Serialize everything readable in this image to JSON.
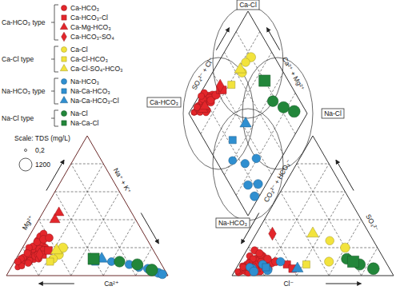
{
  "chart_data": {
    "type": "piper",
    "grid": true,
    "tick_labels": false,
    "legend": "top-left",
    "xlim": [
      0,
      100
    ],
    "xticks": [
      20,
      40,
      60,
      80
    ],
    "facies_labels": [
      "Ca-Cl",
      "Ca-HCO₃",
      "Na-Cl",
      "Na-HCO₃"
    ],
    "axis_labels": {
      "diamond_left": "SO₄²⁻ + Cl⁻",
      "diamond_right": "Ca²⁺ + Mg²⁺",
      "cation_left": "Mg²⁺",
      "cation_right": "Na⁺ + K⁺",
      "cation_bottom": "Ca²⁺",
      "anion_left": "CO₃²⁻ + HCO₃⁻",
      "anion_right": "SO₄²⁻",
      "anion_bottom": "Cl⁻"
    },
    "size_legend": {
      "title": "Scale: TDS (mg/L)",
      "values": [
        {
          "value": 0.2,
          "label": "0,2"
        },
        1200
      ]
    },
    "groups": [
      {
        "name": "Ca-HCO₃ type",
        "series": [
          {
            "name": "Ca-HCO₃",
            "color": "#e3262b",
            "marker": "circle",
            "ca": [
              82,
              78,
              85,
              75,
              70,
              88,
              80,
              72,
              68,
              84,
              76,
              79,
              65,
              90,
              74,
              81,
              67,
              86,
              73,
              77,
              62,
              83,
              71,
              87,
              69,
              80,
              75,
              64,
              78,
              82,
              70,
              66,
              85,
              60,
              76,
              73,
              79,
              68,
              88,
              74
            ],
            "mg": [
              12,
              15,
              10,
              18,
              22,
              8,
              14,
              20,
              25,
              11,
              16,
              13,
              28,
              6,
              19,
              10,
              22,
              9,
              21,
              12,
              30,
              13,
              17,
              7,
              24,
              11,
              14,
              26,
              17,
              9,
              19,
              20,
              12,
              27,
              20,
              15,
              16,
              18,
              10,
              12
            ],
            "cl": [
              5,
              8,
              4,
              10,
              12,
              3,
              6,
              15,
              9,
              7,
              18,
              4,
              8,
              2,
              11,
              14,
              20,
              5,
              7,
              12,
              6,
              9,
              16,
              6,
              13,
              3,
              20,
              10,
              8,
              11,
              5,
              14,
              13,
              18,
              4,
              9,
              16,
              22,
              7,
              6
            ],
            "so4": [
              4,
              6,
              3,
              5,
              8,
              2,
              10,
              6,
              12,
              5,
              7,
              14,
              9,
              3,
              11,
              4,
              9,
              8,
              3,
              14,
              5,
              2,
              12,
              6,
              4,
              7,
              5,
              15,
              9,
              8,
              18,
              3,
              10,
              6,
              6,
              16,
              3,
              10,
              12,
              9
            ],
            "tds": [
              210,
              260,
              180,
              300,
              340,
              150,
              240,
              280,
              310,
              200,
              330,
              220,
              290,
              120,
              270,
              250,
              360,
              190,
              230,
              300,
              260,
              210,
              320,
              170,
              280,
              160,
              310,
              350,
              240,
              220,
              300,
              260,
              230,
              340,
              200,
              290,
              250,
              380,
              190,
              210
            ]
          },
          {
            "name": "Ca-HCO₃-Cl",
            "color": "#e3262b",
            "marker": "square",
            "ca": [
              70,
              65
            ],
            "mg": [
              15,
              18
            ],
            "cl": [
              30,
              35
            ],
            "so4": [
              8,
              5
            ],
            "tds": [
              400,
              450
            ]
          },
          {
            "name": "Ca-Mg-HCO₃",
            "color": "#e3262b",
            "marker": "triangle",
            "ca": [
              45,
              50
            ],
            "mg": [
              45,
              40
            ],
            "cl": [
              8,
              12
            ],
            "so4": [
              6,
              5
            ],
            "tds": [
              300,
              320
            ]
          },
          {
            "name": "Ca-HCO₃-SO₄",
            "color": "#e3262b",
            "marker": "diamond",
            "ca": [
              72
            ],
            "mg": [
              15
            ],
            "cl": [
              10
            ],
            "so4": [
              30
            ],
            "tds": [
              350
            ]
          }
        ]
      },
      {
        "name": "Ca-Cl type",
        "series": [
          {
            "name": "Ca-Cl",
            "color": "#f2e33c",
            "marker": "circle",
            "ca": [
              60,
              55,
              65
            ],
            "mg": [
              15,
              20,
              12
            ],
            "cl": [
              55,
              60,
              48
            ],
            "so4": [
              10,
              20,
              25
            ],
            "tds": [
              500,
              550,
              420
            ]
          },
          {
            "name": "Ca-Cl-HCO₃",
            "color": "#f2e33c",
            "marker": "square",
            "ca": [
              68
            ],
            "mg": [
              10
            ],
            "cl": [
              42
            ],
            "so4": [
              8
            ],
            "tds": [
              380
            ]
          },
          {
            "name": "Ca-Cl-SO₄-HCO₃",
            "color": "#f2e33c",
            "marker": "triangle",
            "ca": [
              60
            ],
            "mg": [
              18
            ],
            "cl": [
              35
            ],
            "so4": [
              30
            ],
            "tds": [
              450
            ]
          }
        ]
      },
      {
        "name": "Na-HCO₃ type",
        "series": [
          {
            "name": "Na-HCO₃",
            "color": "#2f8fd0",
            "marker": "circle",
            "ca": [
              20,
              10,
              5,
              30,
              15,
              3
            ],
            "mg": [
              8,
              5,
              2,
              10,
              6,
              1
            ],
            "cl": [
              15,
              10,
              20,
              8,
              25,
              12
            ],
            "so4": [
              8,
              5,
              4,
              6,
              10,
              3
            ],
            "tds": [
              400,
              450,
              500,
              350,
              420,
              480
            ]
          },
          {
            "name": "Na-Ca-HCO₃",
            "color": "#2f8fd0",
            "marker": "square",
            "ca": [
              40
            ],
            "mg": [
              10
            ],
            "cl": [
              18
            ],
            "so4": [
              6
            ],
            "tds": [
              380
            ]
          },
          {
            "name": "Na-Ca-HCO₃-Cl",
            "color": "#2f8fd0",
            "marker": "triangle",
            "ca": [
              35
            ],
            "mg": [
              12
            ],
            "cl": [
              38
            ],
            "so4": [
              5
            ],
            "tds": [
              420
            ]
          }
        ]
      },
      {
        "name": "Na-Cl type",
        "series": [
          {
            "name": "Na-Cl",
            "color": "#22863a",
            "marker": "circle",
            "ca": [
              15,
              8,
              25
            ],
            "mg": [
              8,
              4,
              10
            ],
            "cl": [
              75,
              85,
              65
            ],
            "so4": [
              8,
              5,
              12
            ],
            "tds": [
              900,
              1000,
              800
            ]
          },
          {
            "name": "Na-Ca-Cl",
            "color": "#22863a",
            "marker": "square",
            "ca": [
              40
            ],
            "mg": [
              12
            ],
            "cl": [
              70
            ],
            "so4": [
              10
            ],
            "tds": [
              1200
            ]
          }
        ]
      }
    ]
  }
}
